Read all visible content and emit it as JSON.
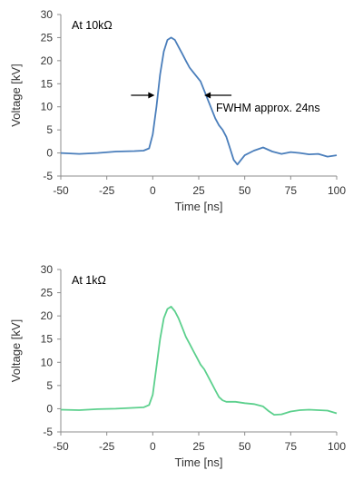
{
  "chart_data": [
    {
      "type": "line",
      "title": "",
      "xlabel": "Time [ns]",
      "ylabel": "Voltage [kV]",
      "xlim": [
        -50,
        100
      ],
      "ylim": [
        -5,
        30
      ],
      "xticks": [
        -50,
        -25,
        0,
        25,
        50,
        75,
        100
      ],
      "yticks": [
        -5,
        0,
        5,
        10,
        15,
        20,
        25,
        30
      ],
      "grid": false,
      "annotation": "At 10kΩ",
      "note_text": "FWHM approx. 24ns",
      "fwhm_arrows_at": {
        "left_x": 1,
        "right_x": 28,
        "y": 12.5
      },
      "series": [
        {
          "color": "#4a7ebb",
          "x": [
            -50,
            -40,
            -30,
            -20,
            -10,
            -5,
            -2,
            0,
            2,
            4,
            6,
            8,
            10,
            12,
            14,
            16,
            18,
            20,
            22,
            24,
            26,
            28,
            30,
            32,
            34,
            36,
            38,
            40,
            42,
            44,
            46,
            48,
            50,
            55,
            60,
            65,
            70,
            75,
            80,
            85,
            90,
            95,
            100
          ],
          "y": [
            0,
            -0.2,
            0,
            0.3,
            0.4,
            0.5,
            1,
            4,
            10,
            17,
            22,
            24.5,
            25,
            24.5,
            23,
            21.5,
            20,
            18.5,
            17.5,
            16.5,
            15.5,
            13.5,
            11.5,
            9.5,
            7.5,
            6,
            5,
            3.5,
            1,
            -1.5,
            -2.5,
            -1.5,
            -0.5,
            0.5,
            1.2,
            0.3,
            -0.2,
            0.2,
            0,
            -0.3,
            -0.2,
            -0.8,
            -0.5
          ]
        }
      ]
    },
    {
      "type": "line",
      "title": "",
      "xlabel": "Time [ns]",
      "ylabel": "Voltage [kV]",
      "xlim": [
        -50,
        100
      ],
      "ylim": [
        -5,
        30
      ],
      "xticks": [
        -50,
        -25,
        0,
        25,
        50,
        75,
        100
      ],
      "yticks": [
        -5,
        0,
        5,
        10,
        15,
        20,
        25,
        30
      ],
      "grid": false,
      "annotation": "At 1kΩ",
      "series": [
        {
          "color": "#5cd08d",
          "x": [
            -50,
            -40,
            -30,
            -20,
            -10,
            -5,
            -2,
            0,
            2,
            4,
            6,
            8,
            10,
            12,
            14,
            16,
            18,
            20,
            22,
            24,
            26,
            28,
            30,
            32,
            34,
            36,
            38,
            40,
            45,
            50,
            55,
            60,
            63,
            66,
            70,
            75,
            80,
            85,
            90,
            95,
            100
          ],
          "y": [
            -0.2,
            -0.3,
            -0.1,
            0,
            0.2,
            0.3,
            0.8,
            3,
            9,
            15,
            19.5,
            21.5,
            22,
            21,
            19.5,
            17.5,
            15.5,
            14,
            12.5,
            11,
            9.5,
            8.5,
            7,
            5.5,
            4,
            2.5,
            1.8,
            1.5,
            1.5,
            1.2,
            1,
            0.5,
            -0.5,
            -1.3,
            -1.2,
            -0.6,
            -0.3,
            -0.2,
            -0.3,
            -0.4,
            -1
          ]
        }
      ]
    }
  ]
}
